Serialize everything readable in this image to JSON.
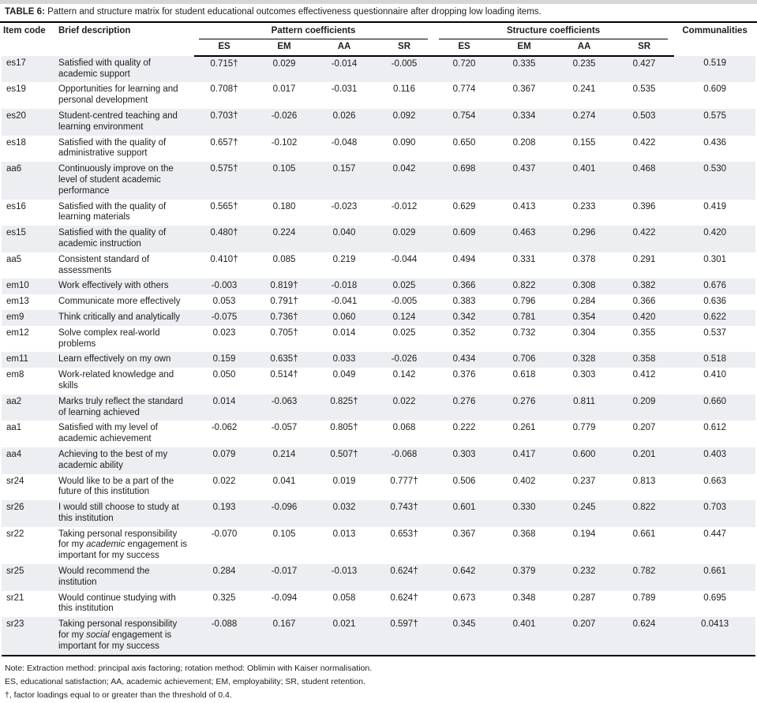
{
  "title": {
    "label": "TABLE 6:",
    "text": "Pattern and structure matrix for student educational outcomes effectiveness questionnaire after dropping low loading items."
  },
  "colors": {
    "row_shade": "#eceef1",
    "rule": "#000000",
    "top_strip": "#d6d6d6"
  },
  "table": {
    "columns": {
      "item": "Item code",
      "desc": "Brief description",
      "pattern_group": "Pattern coefficients",
      "structure_group": "Structure coefficients",
      "communalities": "Communalities"
    },
    "subheaders": {
      "pattern": [
        "ES",
        "EM",
        "AA",
        "SR"
      ],
      "structure": [
        "ES",
        "EM",
        "AA",
        "SR"
      ]
    },
    "rows": [
      {
        "item": "es17",
        "desc": "Satisfied with quality of academic support",
        "pattern": [
          "0.715†",
          "0.029",
          "-0.014",
          "-0.005"
        ],
        "structure": [
          "0.720",
          "0.335",
          "0.235",
          "0.427"
        ],
        "communality": "0.519"
      },
      {
        "item": "es19",
        "desc": "Opportunities for learning and personal development",
        "pattern": [
          "0.708†",
          "0.017",
          "-0.031",
          "0.116"
        ],
        "structure": [
          "0.774",
          "0.367",
          "0.241",
          "0.535"
        ],
        "communality": "0.609"
      },
      {
        "item": "es20",
        "desc": "Student-centred teaching and learning environment",
        "pattern": [
          "0.703†",
          "-0.026",
          "0.026",
          "0.092"
        ],
        "structure": [
          "0.754",
          "0.334",
          "0.274",
          "0.503"
        ],
        "communality": "0.575"
      },
      {
        "item": "es18",
        "desc": "Satisfied with the quality of administrative support",
        "pattern": [
          "0.657†",
          "-0.102",
          "-0.048",
          "0.090"
        ],
        "structure": [
          "0.650",
          "0.208",
          "0.155",
          "0.422"
        ],
        "communality": "0.436"
      },
      {
        "item": "aa6",
        "desc": "Continuously improve on the level of student academic performance",
        "pattern": [
          "0.575†",
          "0.105",
          "0.157",
          "0.042"
        ],
        "structure": [
          "0.698",
          "0.437",
          "0.401",
          "0.468"
        ],
        "communality": "0.530"
      },
      {
        "item": "es16",
        "desc": "Satisfied with the quality of learning materials",
        "pattern": [
          "0.565†",
          "0.180",
          "-0.023",
          "-0.012"
        ],
        "structure": [
          "0.629",
          "0.413",
          "0.233",
          "0.396"
        ],
        "communality": "0.419"
      },
      {
        "item": "es15",
        "desc": "Satisfied with the quality of academic instruction",
        "pattern": [
          "0.480†",
          "0.224",
          "0.040",
          "0.029"
        ],
        "structure": [
          "0.609",
          "0.463",
          "0.296",
          "0.422"
        ],
        "communality": "0.420"
      },
      {
        "item": "aa5",
        "desc": "Consistent standard of assessments",
        "pattern": [
          "0.410†",
          "0.085",
          "0.219",
          "-0.044"
        ],
        "structure": [
          "0.494",
          "0.331",
          "0.378",
          "0.291"
        ],
        "communality": "0.301"
      },
      {
        "item": "em10",
        "desc": "Work effectively with others",
        "pattern": [
          "-0.003",
          "0.819†",
          "-0.018",
          "0.025"
        ],
        "structure": [
          "0.366",
          "0.822",
          "0.308",
          "0.382"
        ],
        "communality": "0.676"
      },
      {
        "item": "em13",
        "desc": "Communicate more effectively",
        "pattern": [
          "0.053",
          "0.791†",
          "-0.041",
          "-0.005"
        ],
        "structure": [
          "0.383",
          "0.796",
          "0.284",
          "0.366"
        ],
        "communality": "0.636"
      },
      {
        "item": "em9",
        "desc": "Think critically and analytically",
        "pattern": [
          "-0.075",
          "0.736†",
          "0.060",
          "0.124"
        ],
        "structure": [
          "0.342",
          "0.781",
          "0.354",
          "0.420"
        ],
        "communality": "0.622"
      },
      {
        "item": "em12",
        "desc": "Solve complex real-world problems",
        "pattern": [
          "0.023",
          "0.705†",
          "0.014",
          "0.025"
        ],
        "structure": [
          "0.352",
          "0.732",
          "0.304",
          "0.355"
        ],
        "communality": "0.537"
      },
      {
        "item": "em11",
        "desc": "Learn effectively on my own",
        "pattern": [
          "0.159",
          "0.635†",
          "0.033",
          "-0.026"
        ],
        "structure": [
          "0.434",
          "0.706",
          "0.328",
          "0.358"
        ],
        "communality": "0.518"
      },
      {
        "item": "em8",
        "desc": "Work-related knowledge and skills",
        "pattern": [
          "0.050",
          "0.514†",
          "0.049",
          "0.142"
        ],
        "structure": [
          "0.376",
          "0.618",
          "0.303",
          "0.412"
        ],
        "communality": "0.410"
      },
      {
        "item": "aa2",
        "desc": "Marks truly reflect the standard of learning achieved",
        "pattern": [
          "0.014",
          "-0.063",
          "0.825†",
          "0.022"
        ],
        "structure": [
          "0.276",
          "0.276",
          "0.811",
          "0.209"
        ],
        "communality": "0.660"
      },
      {
        "item": "aa1",
        "desc": "Satisfied with my level of academic achievement",
        "pattern": [
          "-0.062",
          "-0.057",
          "0.805†",
          "0.068"
        ],
        "structure": [
          "0.222",
          "0.261",
          "0.779",
          "0.207"
        ],
        "communality": "0.612"
      },
      {
        "item": "aa4",
        "desc": "Achieving to the best of my academic ability",
        "pattern": [
          "0.079",
          "0.214",
          "0.507†",
          "-0.068"
        ],
        "structure": [
          "0.303",
          "0.417",
          "0.600",
          "0.201"
        ],
        "communality": "0.403"
      },
      {
        "item": "sr24",
        "desc": "Would like to be a part of the future of this institution",
        "pattern": [
          "0.022",
          "0.041",
          "0.019",
          "0.777†"
        ],
        "structure": [
          "0.506",
          "0.402",
          "0.237",
          "0.813"
        ],
        "communality": "0.663"
      },
      {
        "item": "sr26",
        "desc": "I would still choose to study at this institution",
        "pattern": [
          "0.193",
          "-0.096",
          "0.032",
          "0.743†"
        ],
        "structure": [
          "0.601",
          "0.330",
          "0.245",
          "0.822"
        ],
        "communality": "0.703"
      },
      {
        "item": "sr22",
        "desc": "Taking personal responsibility for my *academic* engagement is important for my success",
        "pattern": [
          "-0.070",
          "0.105",
          "0.013",
          "0.653†"
        ],
        "structure": [
          "0.367",
          "0.368",
          "0.194",
          "0.661"
        ],
        "communality": "0.447"
      },
      {
        "item": "sr25",
        "desc": "Would recommend the institution",
        "pattern": [
          "0.284",
          "-0.017",
          "-0.013",
          "0.624†"
        ],
        "structure": [
          "0.642",
          "0.379",
          "0.232",
          "0.782"
        ],
        "communality": "0.661"
      },
      {
        "item": "sr21",
        "desc": "Would continue studying with this institution",
        "pattern": [
          "0.325",
          "-0.094",
          "0.058",
          "0.624†"
        ],
        "structure": [
          "0.673",
          "0.348",
          "0.287",
          "0.789"
        ],
        "communality": "0.695"
      },
      {
        "item": "sr23",
        "desc": "Taking personal responsibility for my *social* engagement is important for my success",
        "pattern": [
          "-0.088",
          "0.167",
          "0.021",
          "0.597†"
        ],
        "structure": [
          "0.345",
          "0.401",
          "0.207",
          "0.624"
        ],
        "communality": "0.0413"
      }
    ]
  },
  "notes": [
    "Note: Extraction method: principal axis factoring; rotation method: Oblimin with Kaiser normalisation.",
    "ES, educational satisfaction; AA, academic achievement; EM, employability; SR, student retention.",
    "†, factor loadings equal to or greater than the threshold of 0.4."
  ]
}
